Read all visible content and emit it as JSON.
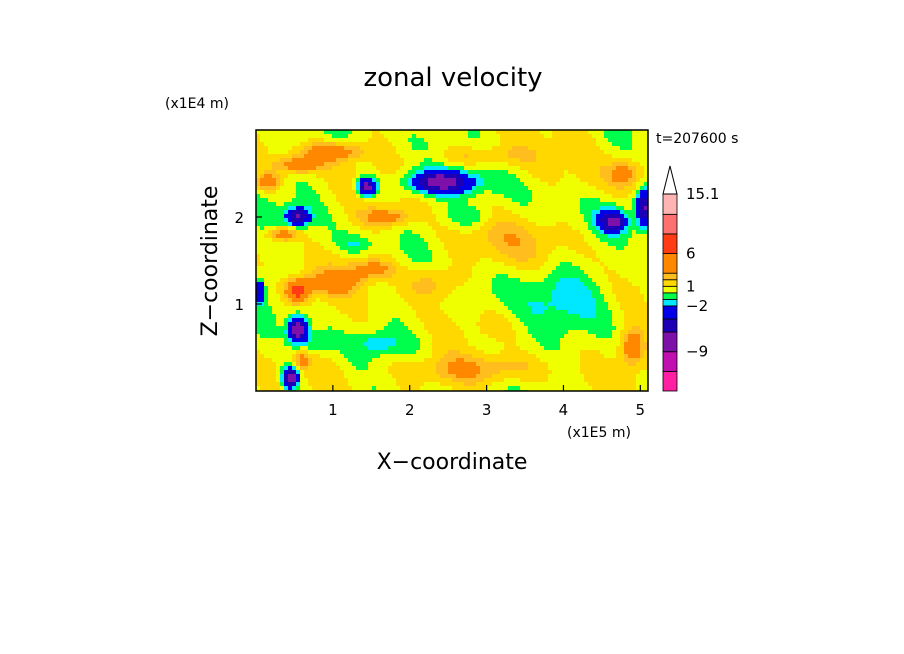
{
  "chart_data": {
    "type": "heatmap",
    "title": "zonal velocity",
    "xlabel": "X−coordinate",
    "ylabel": "Z−coordinate",
    "x_unit": "(x1E5 m)",
    "y_unit": "(x1E4 m)",
    "time_label": "t=207600 s",
    "xlim": [
      0,
      5.1
    ],
    "ylim": [
      0,
      3.0
    ],
    "x_ticks": [
      {
        "value": 1,
        "label": "1"
      },
      {
        "value": 2,
        "label": "2"
      },
      {
        "value": 3,
        "label": "3"
      },
      {
        "value": 4,
        "label": "4"
      },
      {
        "value": 5,
        "label": "5"
      }
    ],
    "y_ticks": [
      {
        "value": 1,
        "label": "1"
      },
      {
        "value": 2,
        "label": "2"
      }
    ],
    "colorbar": {
      "levels": [
        {
          "lo": -15,
          "hi": -12,
          "color": "#ff1fa3"
        },
        {
          "lo": -12,
          "hi": -9,
          "color": "#c20fb0"
        },
        {
          "lo": -9,
          "hi": -6,
          "color": "#7d10a8"
        },
        {
          "lo": -6,
          "hi": -4,
          "color": "#1d00b3"
        },
        {
          "lo": -4,
          "hi": -2,
          "color": "#0000e8"
        },
        {
          "lo": -2,
          "hi": -1,
          "color": "#00e8ff"
        },
        {
          "lo": -1,
          "hi": 0,
          "color": "#00ff4c"
        },
        {
          "lo": 0,
          "hi": 1,
          "color": "#f0ff00"
        },
        {
          "lo": 1,
          "hi": 2,
          "color": "#ffd800"
        },
        {
          "lo": 2,
          "hi": 3,
          "color": "#ffbe1e"
        },
        {
          "lo": 3,
          "hi": 6,
          "color": "#ff8800"
        },
        {
          "lo": 6,
          "hi": 9,
          "color": "#ff3c14"
        },
        {
          "lo": 9,
          "hi": 12,
          "color": "#ff7070"
        },
        {
          "lo": 12,
          "hi": 15.1,
          "color": "#ffb4b4"
        }
      ],
      "labels": [
        {
          "value": 15.1,
          "label": "15.1"
        },
        {
          "value": 6,
          "label": "6"
        },
        {
          "value": 1,
          "label": "1"
        },
        {
          "value": -2,
          "label": "−2"
        },
        {
          "value": -9,
          "label": "−9"
        }
      ],
      "extend": "max"
    },
    "features": [
      {
        "x": 0.45,
        "z": 0.15,
        "sx": 0.1,
        "sz": 0.12,
        "amp": -9
      },
      {
        "x": 0.55,
        "z": 0.7,
        "sx": 0.12,
        "sz": 0.14,
        "amp": -9
      },
      {
        "x": 0.55,
        "z": 2.0,
        "sx": 0.15,
        "sz": 0.1,
        "amp": -7
      },
      {
        "x": 1.45,
        "z": 2.35,
        "sx": 0.12,
        "sz": 0.1,
        "amp": -8
      },
      {
        "x": 2.4,
        "z": 2.4,
        "sx": 0.4,
        "sz": 0.12,
        "amp": -8
      },
      {
        "x": 4.65,
        "z": 1.95,
        "sx": 0.18,
        "sz": 0.12,
        "amp": -7
      },
      {
        "x": 5.05,
        "z": 2.1,
        "sx": 0.1,
        "sz": 0.2,
        "amp": -7
      },
      {
        "x": 0.05,
        "z": 1.15,
        "sx": 0.06,
        "sz": 0.12,
        "amp": -5
      },
      {
        "x": 0.8,
        "z": 0.55,
        "sx": 0.2,
        "sz": 0.12,
        "amp": -2
      },
      {
        "x": 1.6,
        "z": 0.55,
        "sx": 0.25,
        "sz": 0.12,
        "amp": -2
      },
      {
        "x": 2.8,
        "z": 2.0,
        "sx": 0.3,
        "sz": 0.12,
        "amp": -1.5
      },
      {
        "x": 1.3,
        "z": 1.7,
        "sx": 0.25,
        "sz": 0.1,
        "amp": -1.5
      },
      {
        "x": 4.0,
        "z": 1.1,
        "sx": 0.55,
        "sz": 0.35,
        "amp": -1.5
      },
      {
        "x": 3.0,
        "z": 1.1,
        "sx": 0.35,
        "sz": 0.25,
        "amp": -0.8
      },
      {
        "x": 3.2,
        "z": 0.5,
        "sx": 0.45,
        "sz": 0.15,
        "amp": -0.7
      },
      {
        "x": 3.5,
        "z": 2.3,
        "sx": 0.7,
        "sz": 0.2,
        "amp": -0.7
      },
      {
        "x": 0.55,
        "z": 1.15,
        "sx": 0.15,
        "sz": 0.12,
        "amp": 7
      },
      {
        "x": 0.15,
        "z": 2.4,
        "sx": 0.15,
        "sz": 0.1,
        "amp": 4
      },
      {
        "x": 0.35,
        "z": 1.8,
        "sx": 0.2,
        "sz": 0.08,
        "amp": 4
      },
      {
        "x": 0.55,
        "z": 2.6,
        "sx": 0.3,
        "sz": 0.1,
        "amp": 4
      },
      {
        "x": 1.0,
        "z": 2.75,
        "sx": 0.4,
        "sz": 0.1,
        "amp": 4
      },
      {
        "x": 1.0,
        "z": 1.25,
        "sx": 0.3,
        "sz": 0.12,
        "amp": 4
      },
      {
        "x": 1.5,
        "z": 1.4,
        "sx": 0.3,
        "sz": 0.12,
        "amp": 3.5
      },
      {
        "x": 1.7,
        "z": 2.0,
        "sx": 0.3,
        "sz": 0.1,
        "amp": 3.5
      },
      {
        "x": 0.6,
        "z": 0.35,
        "sx": 0.1,
        "sz": 0.1,
        "amp": 3
      },
      {
        "x": 2.7,
        "z": 0.25,
        "sx": 0.9,
        "sz": 0.18,
        "amp": 2.5
      },
      {
        "x": 2.3,
        "z": 1.25,
        "sx": 0.35,
        "sz": 0.2,
        "amp": 2.5
      },
      {
        "x": 4.9,
        "z": 0.5,
        "sx": 0.15,
        "sz": 0.2,
        "amp": 4
      },
      {
        "x": 4.8,
        "z": 2.5,
        "sx": 0.2,
        "sz": 0.15,
        "amp": 3
      },
      {
        "x": 2.9,
        "z": 2.7,
        "sx": 0.6,
        "sz": 0.12,
        "amp": 2
      },
      {
        "x": 3.3,
        "z": 1.7,
        "sx": 0.9,
        "sz": 0.25,
        "amp": 1.2
      },
      {
        "x": 4.3,
        "z": 2.4,
        "sx": 0.5,
        "sz": 0.25,
        "amp": 1.2
      }
    ]
  }
}
